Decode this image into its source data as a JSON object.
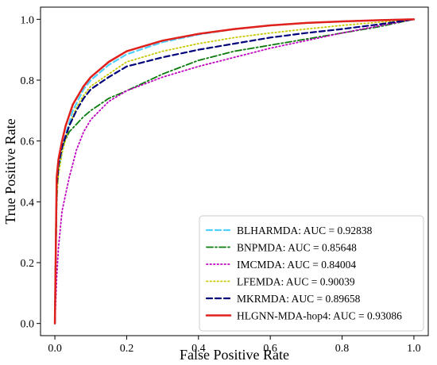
{
  "chart_data": {
    "type": "line",
    "xlabel": "False Positive Rate",
    "ylabel": "True Positive Rate",
    "xlim": [
      -0.04,
      1.04
    ],
    "ylim": [
      -0.04,
      1.04
    ],
    "xticks": [
      "0.0",
      "0.2",
      "0.4",
      "0.6",
      "0.8",
      "1.0"
    ],
    "yticks": [
      "0.0",
      "0.2",
      "0.4",
      "0.6",
      "0.8",
      "1.0"
    ],
    "grid": false,
    "legend_position": "bottom-right",
    "series": [
      {
        "name": "BLHARMDA: AUC = 0.92838",
        "color": "#4fd0ff",
        "dash": "dashed",
        "points": [
          [
            0,
            0
          ],
          [
            0.005,
            0.44
          ],
          [
            0.01,
            0.5
          ],
          [
            0.02,
            0.57
          ],
          [
            0.03,
            0.62
          ],
          [
            0.05,
            0.7
          ],
          [
            0.08,
            0.77
          ],
          [
            0.1,
            0.8
          ],
          [
            0.15,
            0.85
          ],
          [
            0.2,
            0.885
          ],
          [
            0.3,
            0.925
          ],
          [
            0.4,
            0.95
          ],
          [
            0.5,
            0.968
          ],
          [
            0.6,
            0.98
          ],
          [
            0.7,
            0.988
          ],
          [
            0.8,
            0.993
          ],
          [
            0.9,
            0.997
          ],
          [
            1.0,
            1.0
          ]
        ]
      },
      {
        "name": "BNPMDA: AUC = 0.85648",
        "color": "#0a7a0a",
        "dash": "dashdot",
        "points": [
          [
            0,
            0
          ],
          [
            0.003,
            0.35
          ],
          [
            0.01,
            0.52
          ],
          [
            0.02,
            0.58
          ],
          [
            0.04,
            0.63
          ],
          [
            0.08,
            0.68
          ],
          [
            0.1,
            0.7
          ],
          [
            0.15,
            0.74
          ],
          [
            0.2,
            0.765
          ],
          [
            0.3,
            0.82
          ],
          [
            0.4,
            0.865
          ],
          [
            0.5,
            0.895
          ],
          [
            0.6,
            0.915
          ],
          [
            0.7,
            0.935
          ],
          [
            0.8,
            0.955
          ],
          [
            0.9,
            0.975
          ],
          [
            1.0,
            1.0
          ]
        ]
      },
      {
        "name": "IMCMDA: AUC = 0.84004",
        "color": "#c000c0",
        "dash": "dotted",
        "points": [
          [
            0,
            0
          ],
          [
            0.005,
            0.15
          ],
          [
            0.01,
            0.25
          ],
          [
            0.02,
            0.37
          ],
          [
            0.04,
            0.48
          ],
          [
            0.06,
            0.57
          ],
          [
            0.08,
            0.63
          ],
          [
            0.1,
            0.67
          ],
          [
            0.15,
            0.73
          ],
          [
            0.2,
            0.765
          ],
          [
            0.3,
            0.81
          ],
          [
            0.4,
            0.845
          ],
          [
            0.5,
            0.875
          ],
          [
            0.6,
            0.905
          ],
          [
            0.7,
            0.93
          ],
          [
            0.8,
            0.955
          ],
          [
            0.9,
            0.978
          ],
          [
            1.0,
            1.0
          ]
        ]
      },
      {
        "name": "LFEMDA: AUC = 0.90039",
        "color": "#c8c800",
        "dash": "dotted",
        "points": [
          [
            0,
            0
          ],
          [
            0.005,
            0.42
          ],
          [
            0.01,
            0.49
          ],
          [
            0.02,
            0.56
          ],
          [
            0.04,
            0.65
          ],
          [
            0.06,
            0.71
          ],
          [
            0.08,
            0.75
          ],
          [
            0.1,
            0.78
          ],
          [
            0.15,
            0.82
          ],
          [
            0.2,
            0.86
          ],
          [
            0.3,
            0.895
          ],
          [
            0.4,
            0.92
          ],
          [
            0.5,
            0.94
          ],
          [
            0.6,
            0.955
          ],
          [
            0.7,
            0.968
          ],
          [
            0.8,
            0.98
          ],
          [
            0.9,
            0.99
          ],
          [
            1.0,
            1.0
          ]
        ]
      },
      {
        "name": "MKRMDA: AUC = 0.89658",
        "color": "#00007a",
        "dash": "dashed",
        "points": [
          [
            0,
            0
          ],
          [
            0.005,
            0.45
          ],
          [
            0.01,
            0.52
          ],
          [
            0.02,
            0.58
          ],
          [
            0.04,
            0.65
          ],
          [
            0.06,
            0.7
          ],
          [
            0.08,
            0.74
          ],
          [
            0.1,
            0.77
          ],
          [
            0.15,
            0.81
          ],
          [
            0.2,
            0.845
          ],
          [
            0.3,
            0.875
          ],
          [
            0.4,
            0.9
          ],
          [
            0.5,
            0.92
          ],
          [
            0.6,
            0.94
          ],
          [
            0.7,
            0.955
          ],
          [
            0.8,
            0.968
          ],
          [
            0.9,
            0.983
          ],
          [
            1.0,
            1.0
          ]
        ]
      },
      {
        "name": "HLGNN-MDA-hop4: AUC = 0.93086",
        "color": "#e0201a",
        "dash": "solid",
        "points": [
          [
            0,
            0
          ],
          [
            0.005,
            0.48
          ],
          [
            0.01,
            0.54
          ],
          [
            0.02,
            0.6
          ],
          [
            0.03,
            0.65
          ],
          [
            0.05,
            0.72
          ],
          [
            0.08,
            0.78
          ],
          [
            0.1,
            0.81
          ],
          [
            0.15,
            0.86
          ],
          [
            0.2,
            0.895
          ],
          [
            0.3,
            0.93
          ],
          [
            0.4,
            0.952
          ],
          [
            0.5,
            0.968
          ],
          [
            0.6,
            0.98
          ],
          [
            0.7,
            0.988
          ],
          [
            0.8,
            0.993
          ],
          [
            0.9,
            0.997
          ],
          [
            1.0,
            1.0
          ]
        ]
      }
    ]
  }
}
